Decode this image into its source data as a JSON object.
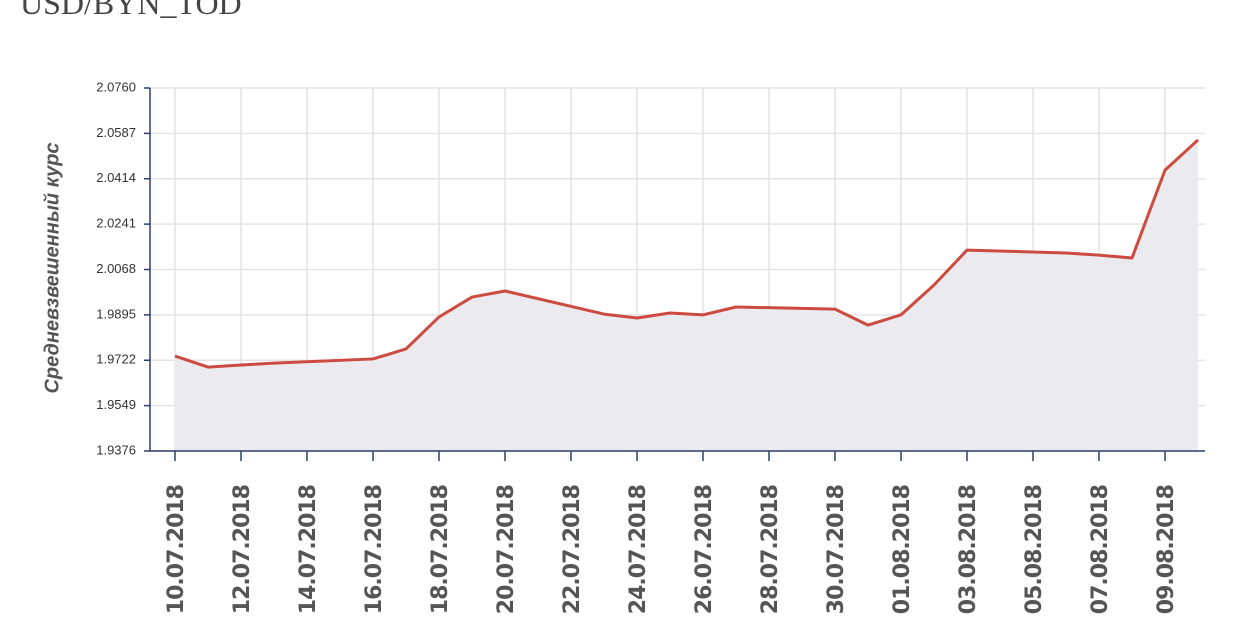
{
  "chart_data": {
    "type": "area",
    "title": "USD/BYN_TOD",
    "y_label": "Средневзвешенный курс",
    "x": [
      "10.07.2018",
      "11.07.2018",
      "12.07.2018",
      "13.07.2018",
      "16.07.2018",
      "17.07.2018",
      "18.07.2018",
      "19.07.2018",
      "20.07.2018",
      "23.07.2018",
      "24.07.2018",
      "25.07.2018",
      "26.07.2018",
      "27.07.2018",
      "30.07.2018",
      "31.07.2018",
      "01.08.2018",
      "02.08.2018",
      "03.08.2018",
      "06.08.2018",
      "07.08.2018",
      "08.08.2018",
      "09.08.2018",
      "10.08.2018"
    ],
    "values": [
      1.9738,
      1.9696,
      1.9704,
      1.9711,
      1.9727,
      1.9765,
      1.9887,
      1.9963,
      1.9986,
      1.9898,
      1.9883,
      1.9902,
      1.9895,
      1.9925,
      1.9917,
      1.9856,
      1.9895,
      2.0009,
      2.0142,
      2.0131,
      2.0123,
      2.0112,
      2.0447,
      2.0562
    ],
    "color": "#cc4a3f",
    "fill": "#ebeaef",
    "xlim": [
      "10.07.2018",
      "10.08.2018"
    ],
    "xticks": [
      "10.07.2018",
      "12.07.2018",
      "14.07.2018",
      "16.07.2018",
      "18.07.2018",
      "20.07.2018",
      "22.07.2018",
      "24.07.2018",
      "26.07.2018",
      "28.07.2018",
      "30.07.2018",
      "01.08.2018",
      "03.08.2018",
      "05.08.2018",
      "07.08.2018",
      "09.08.2018"
    ],
    "ylim": [
      1.9376,
      2.076
    ],
    "yticks": [
      1.9376,
      1.9549,
      1.9722,
      1.9895,
      2.0068,
      2.0241,
      2.0414,
      2.0587,
      {
        "value": 2.076,
        "label": "2.0760"
      }
    ],
    "grid": true
  }
}
